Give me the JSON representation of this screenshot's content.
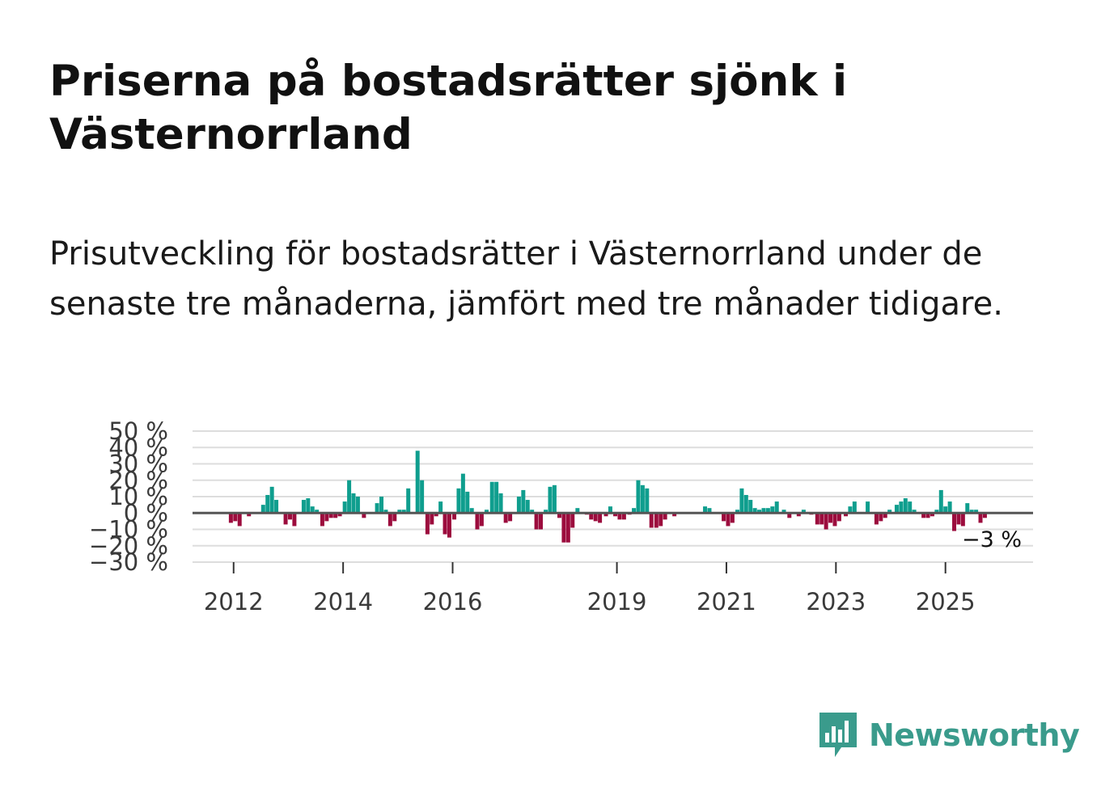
{
  "title": "Priserna på bostadsrätter sjönk i Västernorrland",
  "subtitle": "Prisutveckling för bostadsrätter i Västernorrland under de senaste tre månaderna, jämfört med tre månader tidigare.",
  "brand": {
    "name": "Newsworthy",
    "icon": "newsworthy-logo-icon",
    "color": "#3a9b8c"
  },
  "colors": {
    "positive": "#0f9e8e",
    "negative": "#9c0c3d",
    "grid": "#dddddd",
    "zero": "#555555"
  },
  "chart_data": {
    "type": "bar",
    "title": "",
    "xlabel": "",
    "ylabel": "",
    "ylim": [
      -30,
      50
    ],
    "y_ticks": [
      50,
      40,
      30,
      20,
      10,
      0,
      -10,
      -20,
      -30
    ],
    "y_tick_labels": [
      "50 %",
      "40 %",
      "30 %",
      "20 %",
      "10 %",
      "0 %",
      "−10 %",
      "−20 %",
      "−30 %"
    ],
    "x_tick_labels": [
      "2012",
      "2014",
      "2016",
      "2019",
      "2021",
      "2023",
      "2025"
    ],
    "x_tick_positions": [
      2012.0,
      2014.0,
      2016.0,
      2019.0,
      2021.0,
      2023.0,
      2025.0
    ],
    "x_range": [
      2011.25,
      2026.6
    ],
    "end_label": "−3 %",
    "series": [
      {
        "name": "Prisutveckling",
        "points": [
          [
            2011.95,
            -6
          ],
          [
            2012.03,
            -5
          ],
          [
            2012.11,
            -8
          ],
          [
            2012.28,
            -2
          ],
          [
            2012.54,
            5
          ],
          [
            2012.62,
            11
          ],
          [
            2012.7,
            16
          ],
          [
            2012.78,
            8
          ],
          [
            2012.95,
            -7
          ],
          [
            2013.03,
            -4
          ],
          [
            2013.11,
            -8
          ],
          [
            2013.28,
            8
          ],
          [
            2013.36,
            9
          ],
          [
            2013.44,
            4
          ],
          [
            2013.52,
            2
          ],
          [
            2013.62,
            -8
          ],
          [
            2013.7,
            -5
          ],
          [
            2013.78,
            -3
          ],
          [
            2013.86,
            -3
          ],
          [
            2013.94,
            -2
          ],
          [
            2014.03,
            7
          ],
          [
            2014.11,
            20
          ],
          [
            2014.19,
            12
          ],
          [
            2014.27,
            10
          ],
          [
            2014.38,
            -3
          ],
          [
            2014.62,
            6
          ],
          [
            2014.7,
            10
          ],
          [
            2014.78,
            2
          ],
          [
            2014.86,
            -8
          ],
          [
            2014.94,
            -5
          ],
          [
            2015.03,
            2
          ],
          [
            2015.11,
            2
          ],
          [
            2015.19,
            15
          ],
          [
            2015.36,
            38
          ],
          [
            2015.44,
            20
          ],
          [
            2015.54,
            -13
          ],
          [
            2015.62,
            -7
          ],
          [
            2015.7,
            -2
          ],
          [
            2015.78,
            7
          ],
          [
            2015.86,
            -13
          ],
          [
            2015.94,
            -15
          ],
          [
            2016.03,
            -4
          ],
          [
            2016.11,
            15
          ],
          [
            2016.19,
            24
          ],
          [
            2016.27,
            13
          ],
          [
            2016.35,
            3
          ],
          [
            2016.45,
            -10
          ],
          [
            2016.53,
            -8
          ],
          [
            2016.62,
            2
          ],
          [
            2016.72,
            19
          ],
          [
            2016.8,
            19
          ],
          [
            2016.88,
            12
          ],
          [
            2016.97,
            -6
          ],
          [
            2017.05,
            -5
          ],
          [
            2017.21,
            10
          ],
          [
            2017.29,
            14
          ],
          [
            2017.37,
            8
          ],
          [
            2017.45,
            2
          ],
          [
            2017.53,
            -10
          ],
          [
            2017.61,
            -10
          ],
          [
            2017.7,
            2
          ],
          [
            2017.78,
            16
          ],
          [
            2017.86,
            17
          ],
          [
            2017.95,
            -3
          ],
          [
            2018.03,
            -18
          ],
          [
            2018.11,
            -18
          ],
          [
            2018.19,
            -9
          ],
          [
            2018.28,
            3
          ],
          [
            2018.45,
            -1
          ],
          [
            2018.53,
            -4
          ],
          [
            2018.61,
            -5
          ],
          [
            2018.69,
            -6
          ],
          [
            2018.8,
            -2
          ],
          [
            2018.88,
            4
          ],
          [
            2018.97,
            -2
          ],
          [
            2019.05,
            -4
          ],
          [
            2019.13,
            -4
          ],
          [
            2019.23,
            -1
          ],
          [
            2019.31,
            3
          ],
          [
            2019.39,
            20
          ],
          [
            2019.47,
            17
          ],
          [
            2019.55,
            15
          ],
          [
            2019.63,
            -9
          ],
          [
            2019.72,
            -9
          ],
          [
            2019.8,
            -8
          ],
          [
            2019.88,
            -4
          ],
          [
            2020.05,
            -2
          ],
          [
            2020.61,
            4
          ],
          [
            2020.69,
            3
          ],
          [
            2020.95,
            -5
          ],
          [
            2021.03,
            -8
          ],
          [
            2021.11,
            -6
          ],
          [
            2021.2,
            2
          ],
          [
            2021.28,
            15
          ],
          [
            2021.36,
            11
          ],
          [
            2021.44,
            8
          ],
          [
            2021.52,
            3
          ],
          [
            2021.6,
            2
          ],
          [
            2021.68,
            3
          ],
          [
            2021.76,
            3
          ],
          [
            2021.84,
            4
          ],
          [
            2021.92,
            7
          ],
          [
            2022.05,
            2
          ],
          [
            2022.15,
            -3
          ],
          [
            2022.32,
            -2
          ],
          [
            2022.41,
            2
          ],
          [
            2022.55,
            -1
          ],
          [
            2022.66,
            -7
          ],
          [
            2022.74,
            -7
          ],
          [
            2022.82,
            -10
          ],
          [
            2022.9,
            -6
          ],
          [
            2022.98,
            -8
          ],
          [
            2023.06,
            -5
          ],
          [
            2023.18,
            -2
          ],
          [
            2023.26,
            4
          ],
          [
            2023.34,
            7
          ],
          [
            2023.58,
            7
          ],
          [
            2023.74,
            -7
          ],
          [
            2023.82,
            -5
          ],
          [
            2023.9,
            -3
          ],
          [
            2023.98,
            2
          ],
          [
            2024.11,
            5
          ],
          [
            2024.19,
            7
          ],
          [
            2024.27,
            9
          ],
          [
            2024.35,
            7
          ],
          [
            2024.43,
            2
          ],
          [
            2024.6,
            -3
          ],
          [
            2024.68,
            -3
          ],
          [
            2024.76,
            -2
          ],
          [
            2024.84,
            2
          ],
          [
            2024.92,
            14
          ],
          [
            2025.0,
            4
          ],
          [
            2025.08,
            7
          ],
          [
            2025.16,
            -11
          ],
          [
            2025.24,
            -7
          ],
          [
            2025.32,
            -8
          ],
          [
            2025.4,
            6
          ],
          [
            2025.48,
            2
          ],
          [
            2025.56,
            2
          ],
          [
            2025.64,
            -6
          ],
          [
            2025.72,
            -3
          ]
        ]
      }
    ]
  }
}
